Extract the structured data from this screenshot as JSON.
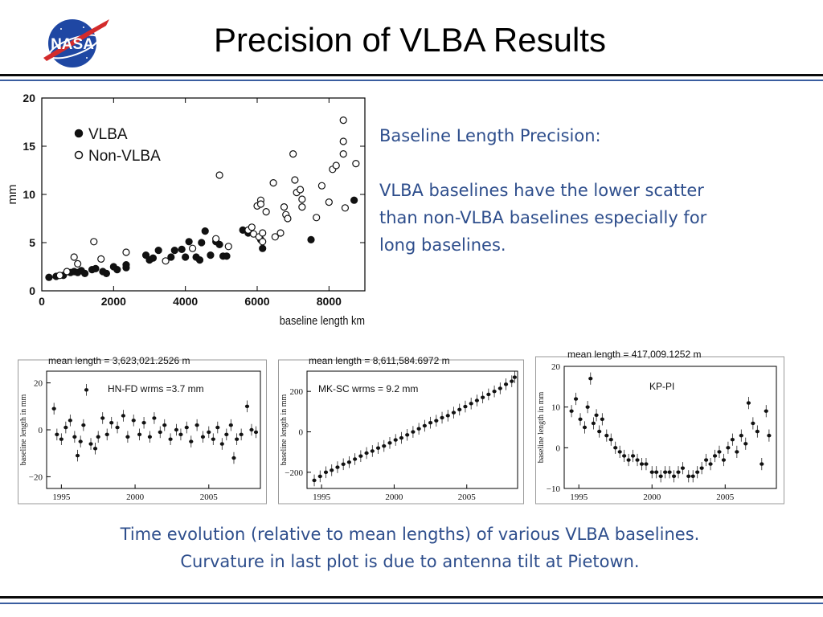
{
  "header": {
    "title": "Precision of VLBA Results",
    "logo_text": "NASA"
  },
  "side_text": {
    "heading": "Baseline Length Precision:",
    "line1": "VLBA baselines have the lower scatter",
    "line2": "than non-VLBA baselines especially for",
    "line3": "long baselines."
  },
  "caption": {
    "line1": "Time evolution (relative to mean lengths) of various VLBA baselines.",
    "line2": "Curvature in last plot is due to antenna tilt at Pietown."
  },
  "colors": {
    "accent_text": "#2e4e8c",
    "rule_blue": "#3a5ea0"
  },
  "chart_data": [
    {
      "type": "scatter",
      "xlabel": "baseline length  km",
      "ylabel": "mm",
      "xlim": [
        0,
        9000
      ],
      "ylim": [
        0,
        20
      ],
      "xticks": [
        0,
        2000,
        4000,
        6000,
        8000
      ],
      "yticks": [
        0,
        5,
        10,
        15,
        20
      ],
      "legend_position": "top-left",
      "series": [
        {
          "name": "VLBA",
          "marker": "filled",
          "points": [
            [
              200,
              1.4
            ],
            [
              400,
              1.5
            ],
            [
              600,
              1.6
            ],
            [
              800,
              1.9
            ],
            [
              900,
              2.0
            ],
            [
              1000,
              1.9
            ],
            [
              1100,
              2.1
            ],
            [
              1200,
              1.8
            ],
            [
              1400,
              2.2
            ],
            [
              1500,
              2.3
            ],
            [
              1700,
              2.0
            ],
            [
              1800,
              1.8
            ],
            [
              2000,
              2.5
            ],
            [
              2100,
              2.2
            ],
            [
              2350,
              2.4
            ],
            [
              2350,
              2.7
            ],
            [
              2900,
              3.7
            ],
            [
              3000,
              3.2
            ],
            [
              3100,
              3.4
            ],
            [
              3250,
              4.2
            ],
            [
              3600,
              3.5
            ],
            [
              3700,
              4.2
            ],
            [
              3900,
              4.3
            ],
            [
              4000,
              3.5
            ],
            [
              4100,
              5.1
            ],
            [
              4300,
              3.5
            ],
            [
              4400,
              3.2
            ],
            [
              4450,
              5.0
            ],
            [
              4550,
              6.2
            ],
            [
              4700,
              3.7
            ],
            [
              4850,
              5.1
            ],
            [
              4950,
              4.8
            ],
            [
              5050,
              3.6
            ],
            [
              5150,
              3.6
            ],
            [
              5600,
              6.3
            ],
            [
              5750,
              6.0
            ],
            [
              6100,
              5.3
            ],
            [
              6150,
              4.4
            ],
            [
              7500,
              5.3
            ],
            [
              8700,
              9.4
            ]
          ]
        },
        {
          "name": "Non-VLBA",
          "marker": "open",
          "points": [
            [
              500,
              1.6
            ],
            [
              700,
              2.0
            ],
            [
              900,
              3.5
            ],
            [
              1000,
              2.8
            ],
            [
              1450,
              5.1
            ],
            [
              1650,
              3.3
            ],
            [
              2350,
              4.0
            ],
            [
              3450,
              3.1
            ],
            [
              4200,
              4.4
            ],
            [
              4850,
              5.4
            ],
            [
              4950,
              12.0
            ],
            [
              5200,
              4.6
            ],
            [
              5750,
              6.3
            ],
            [
              5850,
              6.6
            ],
            [
              5900,
              5.9
            ],
            [
              6000,
              8.8
            ],
            [
              6050,
              5.6
            ],
            [
              6100,
              9.4
            ],
            [
              6100,
              9.0
            ],
            [
              6150,
              5.1
            ],
            [
              6150,
              6.0
            ],
            [
              6250,
              8.2
            ],
            [
              6450,
              11.2
            ],
            [
              6500,
              5.6
            ],
            [
              6650,
              6.0
            ],
            [
              6750,
              8.7
            ],
            [
              6800,
              7.9
            ],
            [
              6850,
              7.5
            ],
            [
              7000,
              14.2
            ],
            [
              7050,
              11.5
            ],
            [
              7100,
              10.2
            ],
            [
              7200,
              10.5
            ],
            [
              7250,
              8.7
            ],
            [
              7250,
              9.5
            ],
            [
              7650,
              7.6
            ],
            [
              7800,
              10.9
            ],
            [
              8000,
              9.2
            ],
            [
              8100,
              12.6
            ],
            [
              8200,
              13.0
            ],
            [
              8400,
              14.2
            ],
            [
              8400,
              15.5
            ],
            [
              8400,
              17.7
            ],
            [
              8450,
              8.6
            ],
            [
              8750,
              13.2
            ]
          ]
        }
      ]
    },
    {
      "type": "scatter",
      "title": "mean length = 3,623,021.2526 m",
      "annotation": "HN-FD  wrms =3.7 mm",
      "ylabel": "baseline length in mm",
      "xlim": [
        1994,
        2008.5
      ],
      "ylim": [
        -25,
        25
      ],
      "xticks": [
        1995,
        2000,
        2005
      ],
      "yticks": [
        -20,
        0,
        20
      ],
      "series": [
        {
          "points": [
            [
              1994.5,
              9
            ],
            [
              1994.7,
              -2
            ],
            [
              1995.0,
              -4
            ],
            [
              1995.3,
              1
            ],
            [
              1995.6,
              4
            ],
            [
              1995.9,
              -3
            ],
            [
              1996.1,
              -11
            ],
            [
              1996.3,
              -5
            ],
            [
              1996.5,
              2
            ],
            [
              1996.7,
              17
            ],
            [
              1997.0,
              -6
            ],
            [
              1997.3,
              -8
            ],
            [
              1997.5,
              -3
            ],
            [
              1997.8,
              5
            ],
            [
              1998.1,
              -2
            ],
            [
              1998.4,
              3
            ],
            [
              1998.8,
              1
            ],
            [
              1999.2,
              6
            ],
            [
              1999.5,
              -3
            ],
            [
              1999.9,
              4
            ],
            [
              2000.3,
              -2
            ],
            [
              2000.6,
              3
            ],
            [
              2001.0,
              -3
            ],
            [
              2001.3,
              5
            ],
            [
              2001.7,
              -1
            ],
            [
              2002.0,
              2
            ],
            [
              2002.4,
              -4
            ],
            [
              2002.8,
              0
            ],
            [
              2003.1,
              -2
            ],
            [
              2003.5,
              1
            ],
            [
              2003.8,
              -5
            ],
            [
              2004.2,
              2
            ],
            [
              2004.6,
              -3
            ],
            [
              2005.0,
              -1
            ],
            [
              2005.3,
              -4
            ],
            [
              2005.6,
              1
            ],
            [
              2005.9,
              -6
            ],
            [
              2006.2,
              -2
            ],
            [
              2006.5,
              2
            ],
            [
              2006.7,
              -12
            ],
            [
              2006.9,
              -4
            ],
            [
              2007.2,
              -2
            ],
            [
              2007.6,
              10
            ],
            [
              2007.9,
              0
            ],
            [
              2008.2,
              -1
            ]
          ]
        }
      ]
    },
    {
      "type": "scatter",
      "title": "mean length = 8,611,584.6972 m",
      "annotation": "MK-SC  wrms = 9.2 mm",
      "ylabel": "baseline length in mm",
      "xlim": [
        1994,
        2008.5
      ],
      "ylim": [
        -280,
        300
      ],
      "xticks": [
        1995,
        2000,
        2005
      ],
      "yticks": [
        -200,
        0,
        200
      ],
      "series": [
        {
          "points": [
            [
              1994.5,
              -240
            ],
            [
              1994.9,
              -220
            ],
            [
              1995.3,
              -200
            ],
            [
              1995.7,
              -190
            ],
            [
              1996.1,
              -175
            ],
            [
              1996.5,
              -160
            ],
            [
              1996.9,
              -150
            ],
            [
              1997.3,
              -135
            ],
            [
              1997.7,
              -120
            ],
            [
              1998.1,
              -105
            ],
            [
              1998.5,
              -95
            ],
            [
              1998.9,
              -80
            ],
            [
              1999.3,
              -70
            ],
            [
              1999.7,
              -55
            ],
            [
              2000.1,
              -40
            ],
            [
              2000.5,
              -30
            ],
            [
              2000.9,
              -15
            ],
            [
              2001.3,
              0
            ],
            [
              2001.7,
              15
            ],
            [
              2002.1,
              30
            ],
            [
              2002.5,
              45
            ],
            [
              2002.9,
              55
            ],
            [
              2003.3,
              70
            ],
            [
              2003.7,
              80
            ],
            [
              2004.1,
              95
            ],
            [
              2004.5,
              110
            ],
            [
              2004.9,
              125
            ],
            [
              2005.3,
              140
            ],
            [
              2005.7,
              155
            ],
            [
              2006.1,
              170
            ],
            [
              2006.5,
              185
            ],
            [
              2006.9,
              200
            ],
            [
              2007.3,
              215
            ],
            [
              2007.7,
              235
            ],
            [
              2008.1,
              250
            ],
            [
              2008.3,
              270
            ]
          ]
        }
      ]
    },
    {
      "type": "scatter",
      "title": "mean length = 417,009.1252 m",
      "annotation": "KP-PI",
      "ylabel": "baseline length in mm",
      "xlim": [
        1994,
        2008.5
      ],
      "ylim": [
        -10,
        20
      ],
      "xticks": [
        1995,
        2000,
        2005
      ],
      "yticks": [
        -10,
        0,
        10,
        20
      ],
      "series": [
        {
          "points": [
            [
              1994.5,
              9
            ],
            [
              1994.8,
              12
            ],
            [
              1995.1,
              7
            ],
            [
              1995.4,
              5
            ],
            [
              1995.6,
              10
            ],
            [
              1995.8,
              17
            ],
            [
              1996.0,
              6
            ],
            [
              1996.2,
              8
            ],
            [
              1996.4,
              4
            ],
            [
              1996.6,
              7
            ],
            [
              1996.9,
              3
            ],
            [
              1997.2,
              2
            ],
            [
              1997.5,
              0
            ],
            [
              1997.8,
              -1
            ],
            [
              1998.1,
              -2
            ],
            [
              1998.4,
              -3
            ],
            [
              1998.7,
              -2
            ],
            [
              1999.0,
              -3
            ],
            [
              1999.3,
              -4
            ],
            [
              1999.6,
              -4
            ],
            [
              2000.0,
              -6
            ],
            [
              2000.3,
              -6
            ],
            [
              2000.6,
              -7
            ],
            [
              2000.9,
              -6
            ],
            [
              2001.2,
              -6
            ],
            [
              2001.5,
              -7
            ],
            [
              2001.8,
              -6
            ],
            [
              2002.1,
              -5
            ],
            [
              2002.5,
              -7
            ],
            [
              2002.8,
              -7
            ],
            [
              2003.1,
              -6
            ],
            [
              2003.4,
              -5
            ],
            [
              2003.7,
              -3
            ],
            [
              2004.0,
              -4
            ],
            [
              2004.3,
              -2
            ],
            [
              2004.6,
              -1
            ],
            [
              2004.9,
              -3
            ],
            [
              2005.2,
              0
            ],
            [
              2005.5,
              2
            ],
            [
              2005.8,
              -1
            ],
            [
              2006.1,
              3
            ],
            [
              2006.4,
              1
            ],
            [
              2006.6,
              11
            ],
            [
              2006.9,
              6
            ],
            [
              2007.2,
              4
            ],
            [
              2007.5,
              -4
            ],
            [
              2007.8,
              9
            ],
            [
              2008.0,
              3
            ]
          ]
        }
      ]
    }
  ]
}
